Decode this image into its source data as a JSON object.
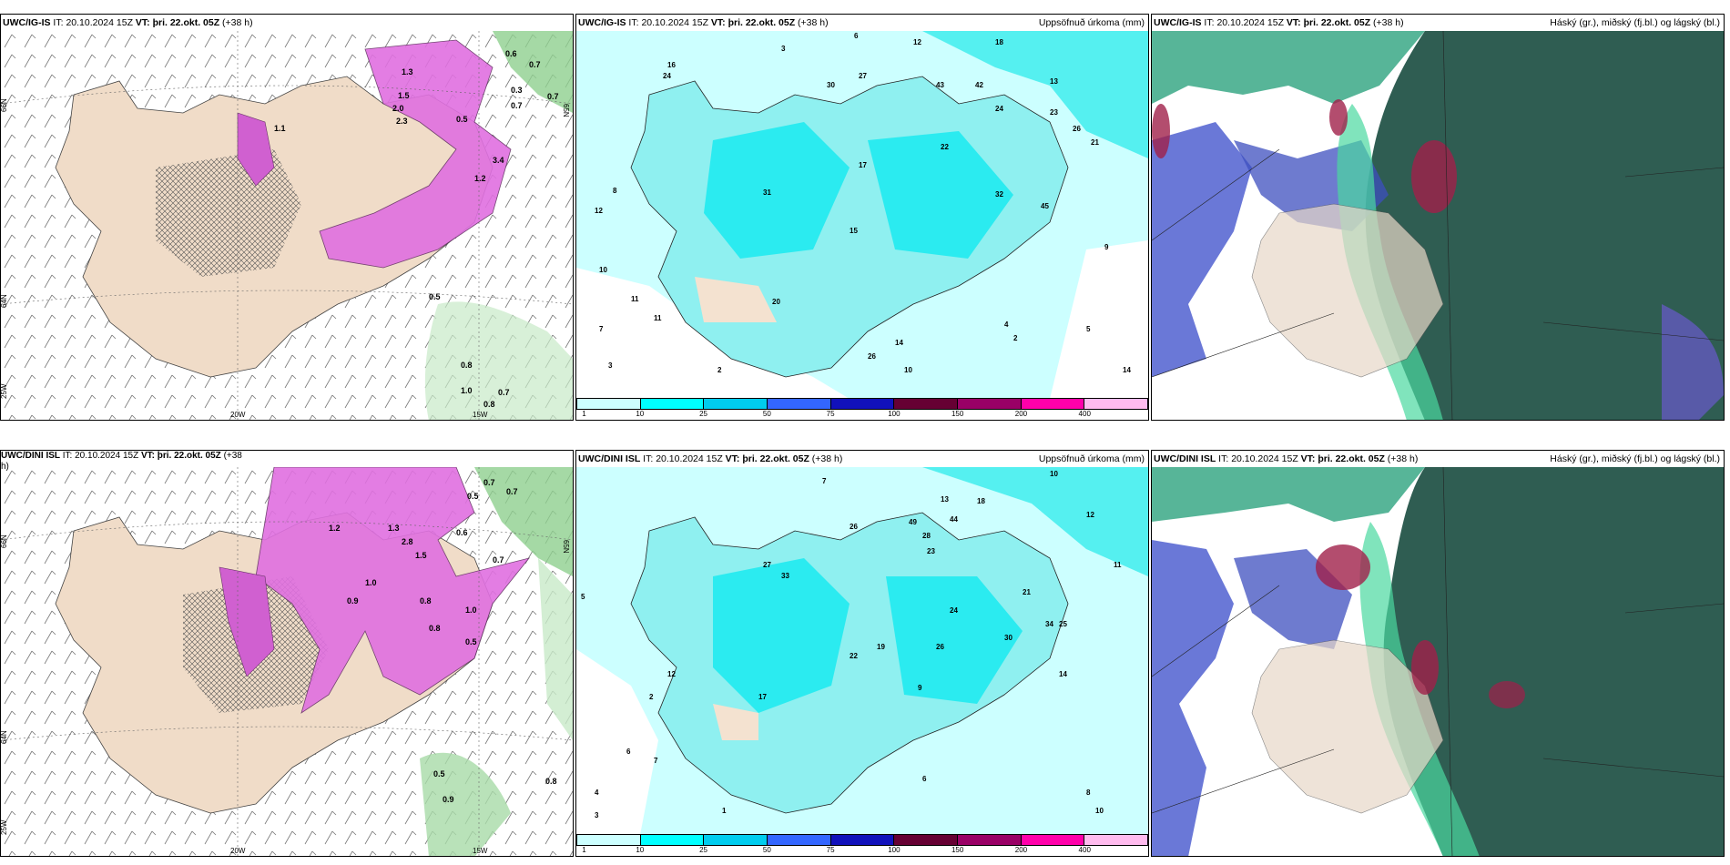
{
  "panels": [
    {
      "id": "p1",
      "model": "UWC/IG-IS",
      "it_label": "IT:",
      "it": "20.10.2024 15Z",
      "vt_label": "VT:",
      "vt": "þri. 22.okt. 05Z",
      "lead": "(+38 h)",
      "right_title": "",
      "lat_labels": [
        "66N",
        "64N",
        "65N"
      ],
      "lon_labels": [
        "25W",
        "20W",
        "15W"
      ],
      "values": [
        "0.6",
        "0.7",
        "0.7",
        "1.3",
        "0.3",
        "0.7",
        "1.5",
        "2.0",
        "2.3",
        "1.1",
        "3.4",
        "1.2",
        "0.5",
        "0.5",
        "0.8",
        "1.0",
        "0.8",
        "0.7"
      ]
    },
    {
      "id": "p2",
      "model": "UWC/IG-IS",
      "it_label": "IT:",
      "it": "20.10.2024 15Z",
      "vt_label": "VT:",
      "vt": "þri. 22.okt. 05Z",
      "lead": "(+38 h)",
      "right_title": "Uppsöfnuð úrkoma (mm)",
      "values": [
        "3",
        "6",
        "12",
        "18",
        "13",
        "16",
        "24",
        "27",
        "30",
        "43",
        "42",
        "24",
        "23",
        "26",
        "21",
        "22",
        "17",
        "31",
        "20",
        "15",
        "32",
        "45",
        "9",
        "12",
        "10",
        "11",
        "7",
        "3",
        "8",
        "11",
        "14",
        "26",
        "10",
        "5",
        "4",
        "2",
        "2",
        "14"
      ]
    },
    {
      "id": "p3",
      "model": "UWC/IG-IS",
      "it_label": "IT:",
      "it": "20.10.2024 15Z",
      "vt_label": "VT:",
      "vt": "þri. 22.okt. 05Z",
      "lead": "(+38 h)",
      "right_title": "Háský (gr.), miðský (fj.bl.) og lágský (bl.)"
    },
    {
      "id": "p4",
      "model": "UWC/DINI ISL",
      "it_label": "IT:",
      "it": "20.10.2024 15Z",
      "vt_label": "VT:",
      "vt": "þri. 22.okt. 05Z",
      "lead": "(+38",
      "lead2": "h)",
      "right_title": "",
      "lat_labels": [
        "66N",
        "64N",
        "65N"
      ],
      "lon_labels": [
        "25W",
        "20W",
        "15W"
      ],
      "values": [
        "0.7",
        "0.7",
        "0.5",
        "1.3",
        "2.8",
        "1.5",
        "1.0",
        "0.8",
        "0.6",
        "0.7",
        "0.5",
        "0.9",
        "1.0",
        "0.8",
        "0.5",
        "0.9",
        "0.8",
        "1.2"
      ]
    },
    {
      "id": "p5",
      "model": "UWC/DINI ISL",
      "it_label": "IT:",
      "it": "20.10.2024 15Z",
      "vt_label": "VT:",
      "vt": "þri. 22.okt. 05Z",
      "lead": "(+38 h)",
      "right_title": "Uppsöfnuð úrkoma (mm)",
      "values": [
        "4",
        "7",
        "10",
        "13",
        "18",
        "12",
        "26",
        "44",
        "49",
        "28",
        "23",
        "27",
        "33",
        "22",
        "19",
        "26",
        "24",
        "30",
        "21",
        "34",
        "25",
        "17",
        "9",
        "5",
        "3",
        "11",
        "6",
        "7",
        "10",
        "8",
        "14",
        "12",
        "2",
        "1",
        "6"
      ]
    },
    {
      "id": "p6",
      "model": "UWC/DINI ISL",
      "it_label": "IT:",
      "it": "20.10.2024 15Z",
      "vt_label": "VT:",
      "vt": "þri. 22.okt. 05Z",
      "lead": "(+38 h)",
      "right_title": "Háský (gr.), miðský (fj.bl.) og lágský (bl.)"
    }
  ],
  "colorbar": {
    "labels": [
      "1",
      "10",
      "25",
      "50",
      "75",
      "100",
      "150",
      "200",
      "400"
    ],
    "colors": [
      "#ccffff",
      "#00ffff",
      "#00ccee",
      "#3366ff",
      "#1111bb",
      "#660033",
      "#990066",
      "#ff00aa",
      "#ffbbee"
    ]
  }
}
